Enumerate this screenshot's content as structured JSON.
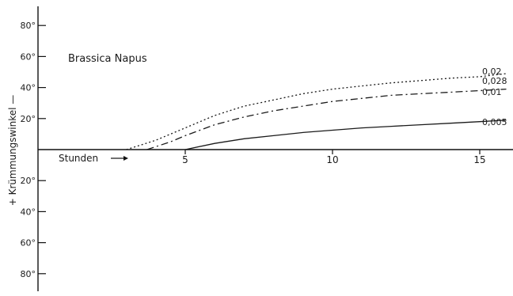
{
  "chart_data": {
    "type": "line",
    "title": "Brassica Napus",
    "ylabel": "+ Krümmungswinkel —",
    "xlabel": "Stunden",
    "xlim": [
      0,
      16
    ],
    "ylim": [
      -100,
      100
    ],
    "x_ticks": [
      5,
      10,
      15
    ],
    "y_tick_values": [
      80,
      60,
      40,
      20,
      -20,
      -40,
      -60,
      -80
    ],
    "y_tick_labels": [
      "80°",
      "60°",
      "40°",
      "20°",
      "20°",
      "40°",
      "60°",
      "80°"
    ],
    "grid": false,
    "series": [
      {
        "name": "0,02",
        "style": "dotted",
        "x": [
          3.0,
          4.0,
          5.0,
          6.0,
          7.0,
          8.0,
          9.0,
          10.0,
          11.0,
          12.0,
          13.0,
          14.0,
          15.0,
          15.9
        ],
        "y": [
          0,
          6,
          14,
          22,
          28,
          32,
          36,
          39,
          41,
          43,
          44.5,
          46,
          47,
          49
        ]
      },
      {
        "name": "0,028",
        "style": "dash-dot",
        "x": [
          3.7,
          4.5,
          5.0,
          6.0,
          7.0,
          8.0,
          9.0,
          10.0,
          11.0,
          12.0,
          13.0,
          14.0,
          15.0,
          15.9
        ],
        "y": [
          0,
          5,
          9,
          16,
          21,
          25,
          28,
          31,
          33,
          35,
          36,
          37,
          38,
          39
        ]
      },
      {
        "name": "0,01",
        "style": "dash-dot",
        "x": [
          3.7,
          4.5,
          5.0,
          6.0,
          7.0,
          8.0,
          9.0,
          10.0,
          11.0,
          12.0,
          13.0,
          14.0,
          15.0,
          15.9
        ],
        "y": [
          0,
          5,
          9,
          16,
          21,
          25,
          28,
          31,
          33,
          35,
          36,
          37,
          38,
          39
        ]
      },
      {
        "name": "0,005",
        "style": "solid",
        "x": [
          5.0,
          6.0,
          7.0,
          8.0,
          9.0,
          10.0,
          11.0,
          12.0,
          13.0,
          14.0,
          15.0,
          15.9
        ],
        "y": [
          0,
          4,
          7,
          9,
          11,
          12.5,
          14,
          15,
          16,
          17,
          18,
          19
        ]
      }
    ],
    "labels": [
      "0,02",
      "0,028",
      "0,01",
      "0,005"
    ]
  }
}
